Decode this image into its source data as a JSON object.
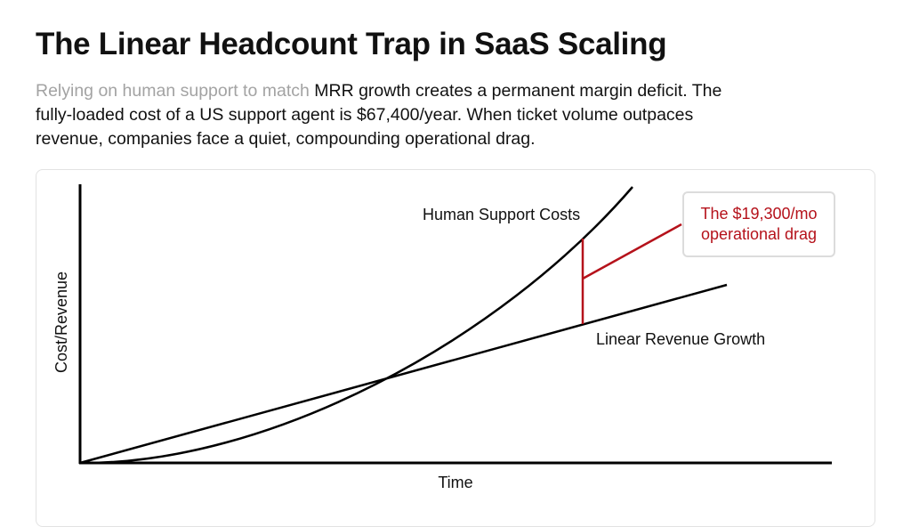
{
  "header": {
    "title": "The Linear Headcount Trap in SaaS Scaling",
    "subtitle_muted": "Relying on human support to match",
    "subtitle_rest": " MRR growth creates a permanent margin deficit. The fully-loaded cost of a US support agent is $67,400/year. When ticket volume outpaces revenue, companies face a quiet, compounding operational drag."
  },
  "chart_data": {
    "type": "line",
    "xlabel": "Time",
    "ylabel": "Cost/Revenue",
    "grid": false,
    "series": [
      {
        "name": "Human Support Costs",
        "shape": "exponential",
        "color": "#000000"
      },
      {
        "name": "Linear Revenue Growth",
        "shape": "linear",
        "color": "#000000"
      }
    ],
    "annotation": {
      "line1": "The $19,300/mo",
      "line2": "operational drag",
      "color": "#b5121b"
    }
  }
}
